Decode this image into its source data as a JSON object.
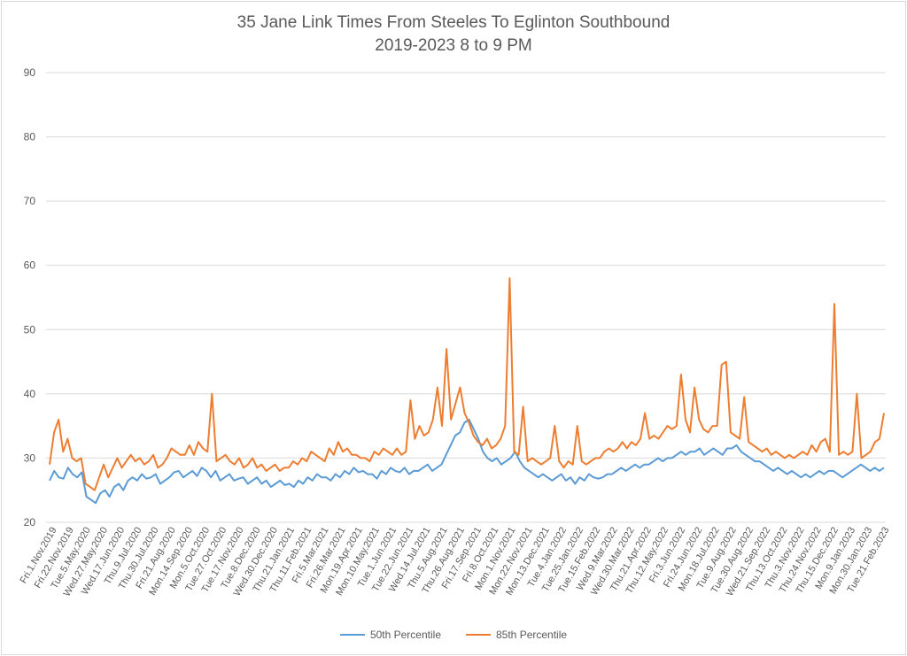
{
  "chart_data": {
    "type": "line",
    "title": "35 Jane Link Times From Steeles To Eglinton Southbound",
    "subtitle": "2019-2023 8 to 9 PM",
    "xlabel": "",
    "ylabel": "",
    "ylim": [
      20,
      90
    ],
    "yticks": [
      20,
      30,
      40,
      50,
      60,
      70,
      80,
      90
    ],
    "grid": true,
    "legend_position": "bottom",
    "x_tick_labels": [
      "Fri.1.Nov.2019",
      "Fri.22.Nov.2019",
      "Tue.5.May.2020",
      "Wed.27.May.2020",
      "Wed.17.Jun.2020",
      "Thu.9.Jul.2020",
      "Thu.30.Jul.2020",
      "Fri.21.Aug.2020",
      "Mon.14.Sep.2020",
      "Mon.5.Oct.2020",
      "Tue.27.Oct.2020",
      "Tue.17.Nov.2020",
      "Tue.8.Dec.2020",
      "Wed.30.Dec.2020",
      "Thu.21.Jan.2021",
      "Thu.11.Feb.2021",
      "Fri.5.Mar.2021",
      "Fri.26.Mar.2021",
      "Mon.19.Apr.2021",
      "Mon.10.May.2021",
      "Tue.1.Jun.2021",
      "Tue.22.Jun.2021",
      "Wed.14.Jul.2021",
      "Thu.5.Aug.2021",
      "Thu.26.Aug.2021",
      "Fri.17.Sep.2021",
      "Fri.8.Oct.2021",
      "Mon.1.Nov.2021",
      "Mon.22.Nov.2021",
      "Mon.13.Dec.2021",
      "Tue.4.Jan.2022",
      "Tue.25.Jan.2022",
      "Tue.15.Feb.2022",
      "Wed.9.Mar.2022",
      "Wed.30.Mar.2022",
      "Thu.21.Apr.2022",
      "Thu.12.May.2022",
      "Fri.3.Jun.2022",
      "Fri.24.Jun.2022",
      "Mon.18.Jul.2022",
      "Tue.9.Aug.2022",
      "Tue.30.Aug.2022",
      "Wed.21.Sep.2022",
      "Thu.13.Oct.2022",
      "Thu.3.Nov.2022",
      "Thu.24.Nov.2022",
      "Thu.15.Dec.2022",
      "Mon.9.Jan.2023",
      "Mon.30.Jan.2023",
      "Tue.21.Feb.2023"
    ],
    "series": [
      {
        "name": "50th Percentile",
        "color": "#5b9bd5",
        "values": [
          26.5,
          28.0,
          27.0,
          26.8,
          28.5,
          27.5,
          27.0,
          27.8,
          24.0,
          23.5,
          23.0,
          24.5,
          25.0,
          24.0,
          25.5,
          26.0,
          25.0,
          26.5,
          27.0,
          26.5,
          27.5,
          26.8,
          27.0,
          27.5,
          26.0,
          26.5,
          27.0,
          27.8,
          28.0,
          27.0,
          27.5,
          28.0,
          27.2,
          28.5,
          28.0,
          27.0,
          28.0,
          26.5,
          27.0,
          27.5,
          26.5,
          26.8,
          27.0,
          26.0,
          26.5,
          27.0,
          26.0,
          26.5,
          25.5,
          26.0,
          26.5,
          25.8,
          26.0,
          25.5,
          26.5,
          26.0,
          27.0,
          26.5,
          27.5,
          27.0,
          27.0,
          26.5,
          27.5,
          27.0,
          28.0,
          27.5,
          28.5,
          27.8,
          28.0,
          27.5,
          27.5,
          26.8,
          28.0,
          27.5,
          28.5,
          28.0,
          27.8,
          28.5,
          27.5,
          28.0,
          28.0,
          28.5,
          29.0,
          28.0,
          28.5,
          29.0,
          30.5,
          32.0,
          33.5,
          34.0,
          35.5,
          36.0,
          34.5,
          33.0,
          31.0,
          30.0,
          29.5,
          30.0,
          29.0,
          29.5,
          30.0,
          31.0,
          29.5,
          28.5,
          28.0,
          27.5,
          27.0,
          27.5,
          27.0,
          26.5,
          27.0,
          27.5,
          26.5,
          27.0,
          26.0,
          27.0,
          26.5,
          27.5,
          27.0,
          26.8,
          27.0,
          27.5,
          27.5,
          28.0,
          28.5,
          28.0,
          28.5,
          29.0,
          28.5,
          29.0,
          29.0,
          29.5,
          30.0,
          29.5,
          30.0,
          30.0,
          30.5,
          31.0,
          30.5,
          31.0,
          31.0,
          31.5,
          30.5,
          31.0,
          31.5,
          31.0,
          30.5,
          31.5,
          31.5,
          32.0,
          31.0,
          30.5,
          30.0,
          29.5,
          29.5,
          29.0,
          28.5,
          28.0,
          28.5,
          28.0,
          27.5,
          28.0,
          27.5,
          27.0,
          27.5,
          27.0,
          27.5,
          28.0,
          27.5,
          28.0,
          28.0,
          27.5,
          27.0,
          27.5,
          28.0,
          28.5,
          29.0,
          28.5,
          28.0,
          28.5,
          28.0,
          28.5
        ]
      },
      {
        "name": "85th Percentile",
        "color": "#ed7d31",
        "values": [
          29.0,
          34.0,
          36.0,
          31.0,
          33.0,
          30.0,
          29.5,
          30.0,
          26.0,
          25.5,
          25.0,
          27.0,
          29.0,
          27.0,
          28.5,
          30.0,
          28.5,
          29.5,
          30.5,
          29.5,
          30.0,
          29.0,
          29.5,
          30.5,
          28.5,
          29.0,
          30.0,
          31.5,
          31.0,
          30.5,
          30.5,
          32.0,
          30.5,
          32.5,
          31.5,
          31.0,
          40.0,
          29.5,
          30.0,
          30.5,
          29.5,
          29.0,
          30.0,
          28.5,
          29.0,
          30.0,
          28.5,
          29.0,
          28.0,
          28.5,
          29.0,
          28.0,
          28.5,
          28.5,
          29.5,
          29.0,
          30.0,
          29.5,
          31.0,
          30.5,
          30.0,
          29.5,
          31.5,
          30.5,
          32.5,
          31.0,
          31.5,
          30.5,
          30.5,
          30.0,
          30.0,
          29.5,
          31.0,
          30.5,
          31.5,
          31.0,
          30.5,
          31.5,
          30.5,
          31.0,
          39.0,
          33.0,
          35.0,
          33.5,
          34.0,
          36.0,
          41.0,
          35.0,
          47.0,
          36.0,
          38.5,
          41.0,
          37.0,
          35.5,
          33.5,
          32.5,
          32.0,
          33.0,
          31.5,
          32.0,
          33.0,
          35.0,
          58.0,
          31.0,
          30.5,
          38.0,
          29.5,
          30.0,
          29.5,
          29.0,
          29.5,
          30.0,
          35.0,
          29.5,
          28.5,
          29.5,
          29.0,
          35.0,
          29.5,
          29.0,
          29.5,
          30.0,
          30.0,
          31.0,
          31.5,
          31.0,
          31.5,
          32.5,
          31.5,
          32.5,
          32.0,
          33.0,
          37.0,
          33.0,
          33.5,
          33.0,
          34.0,
          35.0,
          34.5,
          35.0,
          43.0,
          36.0,
          34.0,
          41.0,
          36.0,
          34.5,
          34.0,
          35.0,
          35.0,
          44.5,
          45.0,
          34.0,
          33.5,
          33.0,
          39.5,
          32.5,
          32.0,
          31.5,
          31.0,
          31.5,
          30.5,
          31.0,
          30.5,
          30.0,
          30.5,
          30.0,
          30.5,
          31.0,
          30.5,
          32.0,
          31.0,
          32.5,
          33.0,
          31.0,
          54.0,
          30.5,
          31.0,
          30.5,
          31.0,
          40.0,
          30.0,
          30.5,
          31.0,
          32.5,
          33.0,
          37.0
        ]
      }
    ]
  }
}
